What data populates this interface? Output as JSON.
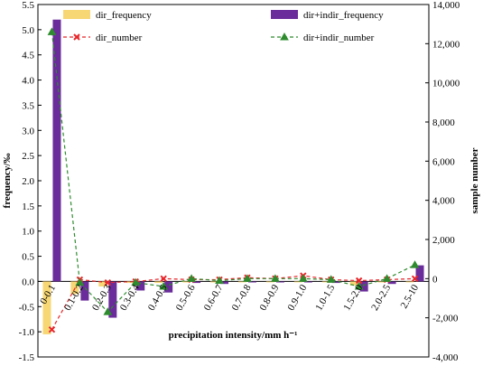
{
  "chart_data": {
    "type": "bar",
    "xlabel": "precipitation intensity/mm h⁻¹",
    "ylabel": "frequency/‰",
    "y2label": "sample number",
    "ylim": [
      -1.5,
      5.5
    ],
    "y2lim": [
      -4000,
      14000
    ],
    "yticks": [
      "-1.5",
      "-1.0",
      "-0.5",
      "0.0",
      "0.5",
      "1.0",
      "1.5",
      "2.0",
      "2.5",
      "3.0",
      "3.5",
      "4.0",
      "4.5",
      "5.0",
      "5.5"
    ],
    "y2ticks": [
      "-4,000",
      "-2,000",
      "0",
      "2,000",
      "4,000",
      "6,000",
      "8,000",
      "10,000",
      "12,000",
      "14,000"
    ],
    "categories": [
      "0-0.1",
      "0.1-0.2",
      "0.2-0.3",
      "0.3-0.4",
      "0.4-0.5",
      "0.5-0.6",
      "0.6-0.7",
      "0.7-0.8",
      "0.8-0.9",
      "0.9-1.0",
      "1.0-1.5",
      "1.5-2.0",
      "2.0-2.5",
      "2.5-10"
    ],
    "grid": false,
    "legend_position": "top",
    "series": [
      {
        "name": "dir_frequency",
        "kind": "bar",
        "axis": "left",
        "color": "#f7d774",
        "values": [
          -1.05,
          -0.25,
          -0.1,
          -0.03,
          -0.03,
          -0.02,
          -0.02,
          -0.01,
          -0.01,
          -0.01,
          -0.01,
          -0.08,
          -0.02,
          -0.01
        ]
      },
      {
        "name": "dir+indir_frequency",
        "kind": "bar",
        "axis": "left",
        "color": "#6a2c9a",
        "values": [
          5.2,
          -0.38,
          -0.72,
          -0.18,
          -0.22,
          -0.03,
          -0.05,
          -0.02,
          -0.02,
          -0.02,
          -0.03,
          -0.2,
          -0.05,
          0.32
        ]
      },
      {
        "name": "dir_number",
        "kind": "line",
        "axis": "right",
        "color": "#e8262a",
        "marker": "x",
        "values": [
          -2600,
          -50,
          -200,
          -150,
          0,
          -50,
          -50,
          50,
          0,
          150,
          -50,
          -100,
          -50,
          0
        ]
      },
      {
        "name": "dir+indir_number",
        "kind": "line",
        "axis": "right",
        "color": "#2e8b2e",
        "marker": "triangle",
        "values": [
          12600,
          -200,
          -1700,
          -200,
          -400,
          0,
          -100,
          0,
          0,
          0,
          -50,
          -400,
          0,
          700
        ]
      }
    ]
  }
}
